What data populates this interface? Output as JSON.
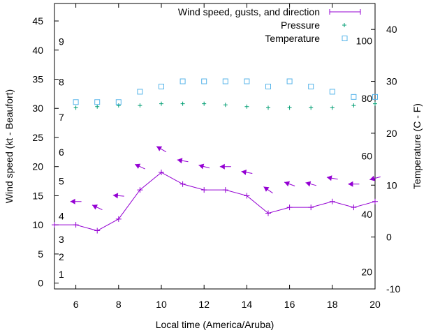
{
  "chart_data": {
    "type": "line",
    "title": "",
    "xlabel": "Local time (America/Aruba)",
    "ylabel": "Wind speed (kt - Beaufort)",
    "y2label": "Temperature (C - F)",
    "xlim": [
      5,
      20
    ],
    "ylim": [
      -1,
      48
    ],
    "y2lim": [
      -10,
      45
    ],
    "x_ticks": [
      6,
      8,
      10,
      12,
      14,
      16,
      18,
      20
    ],
    "y_ticks": [
      0,
      5,
      10,
      15,
      20,
      25,
      30,
      35,
      40,
      45
    ],
    "y2_ticks": [
      -10,
      0,
      10,
      20,
      30,
      40
    ],
    "beaufort_labels": [
      {
        "label": "1",
        "kt": 1.5
      },
      {
        "label": "2",
        "kt": 4.5
      },
      {
        "label": "3",
        "kt": 7.5
      },
      {
        "label": "4",
        "kt": 11.5
      },
      {
        "label": "5",
        "kt": 17.5
      },
      {
        "label": "6",
        "kt": 22.5
      },
      {
        "label": "7",
        "kt": 28.5
      },
      {
        "label": "8",
        "kt": 34.5
      },
      {
        "label": "9",
        "kt": 41.5
      }
    ],
    "fahrenheit_labels": [
      {
        "label": "20",
        "c": -6.7
      },
      {
        "label": "40",
        "c": 4.4
      },
      {
        "label": "60",
        "c": 15.6
      },
      {
        "label": "80",
        "c": 26.7
      },
      {
        "label": "100",
        "c": 37.8
      }
    ],
    "legend": [
      {
        "name": "Wind speed, gusts, and direction",
        "marker": "line-plus"
      },
      {
        "name": "Pressure",
        "marker": "plus"
      },
      {
        "name": "Temperature",
        "marker": "square"
      }
    ],
    "series": [
      {
        "name": "Wind speed, gusts, and direction",
        "color": "#9400d3",
        "x": [
          5,
          6,
          7,
          8,
          9,
          10,
          11,
          12,
          13,
          14,
          15,
          16,
          17,
          18,
          19,
          20
        ],
        "values": [
          10,
          10,
          9,
          11,
          16,
          19,
          17,
          16,
          16,
          15,
          12,
          13,
          13,
          14,
          13,
          14
        ]
      },
      {
        "name": "Pressure",
        "color": "#009e73",
        "x": [
          6,
          7,
          8,
          9,
          10,
          11,
          12,
          13,
          14,
          15,
          16,
          17,
          18,
          19,
          20
        ],
        "values": [
          30.1,
          30.3,
          30.5,
          30.5,
          30.8,
          30.8,
          30.8,
          30.6,
          30.3,
          30.1,
          30.1,
          30.1,
          30.1,
          30.5,
          30.8
        ]
      },
      {
        "name": "Temperature",
        "color": "#56b4e9",
        "axis": "y2",
        "x": [
          6,
          7,
          8,
          9,
          10,
          11,
          12,
          13,
          14,
          15,
          16,
          17,
          18,
          19,
          20
        ],
        "values": [
          26,
          26,
          26,
          28,
          29,
          30,
          30,
          30,
          30,
          29,
          30,
          29,
          28,
          27,
          27
        ]
      }
    ],
    "direction_arrows": {
      "color": "#9400d3",
      "x": [
        6,
        7,
        8,
        9,
        10,
        11,
        12,
        13,
        14,
        15,
        16,
        17,
        18,
        19,
        20
      ],
      "y": [
        14,
        13,
        15,
        20,
        23,
        21,
        20,
        20,
        19,
        16,
        17,
        17,
        18,
        17,
        18
      ],
      "heading_deg": [
        180,
        155,
        175,
        155,
        150,
        170,
        165,
        180,
        170,
        145,
        160,
        165,
        170,
        180,
        195
      ]
    }
  }
}
